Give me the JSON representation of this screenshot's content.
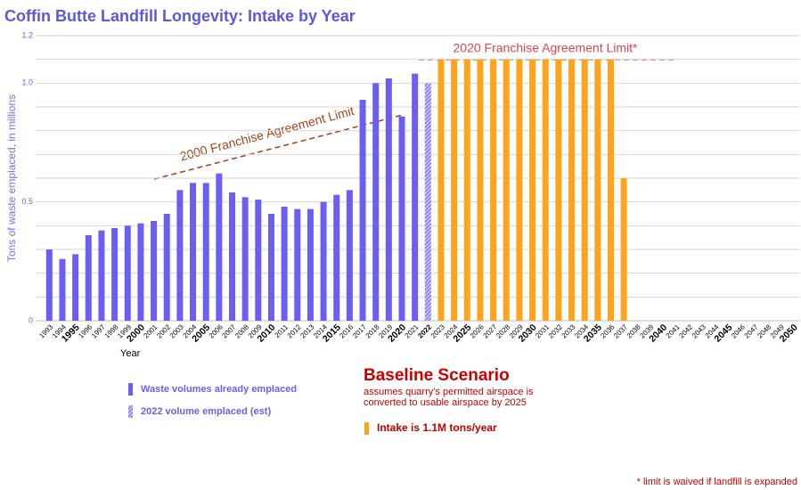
{
  "chart_data": {
    "type": "bar",
    "title": "Coffin Butte Landfill Longevity: Intake by Year",
    "y_label": "Tons of waste emplaced, in millions",
    "x_label": "Year",
    "annotations": [
      "2000 Franchise Agreement Limit",
      "2020 Franchise Agreement Limit*"
    ],
    "scenario_title": "Baseline Scenario",
    "scenario_notes": [
      "assumes quarry’s permitted airspace is",
      "converted to usable airspace by 2025"
    ],
    "footnote": "* limit is waived if landfill is expanded",
    "categories": [
      "1993",
      "1994",
      "1995",
      "1996",
      "1997",
      "1998",
      "1999",
      "2000",
      "2001",
      "2002",
      "2003",
      "2004",
      "2005",
      "2006",
      "2007",
      "2008",
      "2009",
      "2010",
      "2011",
      "2012",
      "2013",
      "2014",
      "2015",
      "2016",
      "2017",
      "2018",
      "2019",
      "2020",
      "2021",
      "2022",
      "2023",
      "2024",
      "2025",
      "2026",
      "2027",
      "2028",
      "2029",
      "2030",
      "2031",
      "2032",
      "2033",
      "2034",
      "2035",
      "2036",
      "2037",
      "2038",
      "2039",
      "2040",
      "2041",
      "2042",
      "2043",
      "2044",
      "2045",
      "2046",
      "2047",
      "2048",
      "2049",
      "2050"
    ],
    "highlight_category": 29,
    "highlight_color": "#e0202a",
    "series": [
      {
        "name": "Waste volumes already emplaced",
        "color": "#6b5ef2",
        "values": [
          0.3,
          0.26,
          0.28,
          0.36,
          0.38,
          0.39,
          0.4,
          0.41,
          0.42,
          0.45,
          0.55,
          0.58,
          0.58,
          0.62,
          0.54,
          0.52,
          0.51,
          0.45,
          0.48,
          0.47,
          0.47,
          0.5,
          0.53,
          0.55,
          0.93,
          1.0,
          1.02,
          0.86,
          1.04,
          null,
          null,
          null,
          null,
          null,
          null,
          null,
          null,
          null,
          null,
          null,
          null,
          null,
          null,
          null,
          null,
          null,
          null,
          null,
          null,
          null,
          null,
          null,
          null,
          null,
          null,
          null,
          null,
          null
        ]
      },
      {
        "name": "2022 volume emplaced (est)",
        "color": "#6b5ef2",
        "pattern": "hatch",
        "values": [
          null,
          null,
          null,
          null,
          null,
          null,
          null,
          null,
          null,
          null,
          null,
          null,
          null,
          null,
          null,
          null,
          null,
          null,
          null,
          null,
          null,
          null,
          null,
          null,
          null,
          null,
          null,
          null,
          null,
          1.0,
          null,
          null,
          null,
          null,
          null,
          null,
          null,
          null,
          null,
          null,
          null,
          null,
          null,
          null,
          null,
          null,
          null,
          null,
          null,
          null,
          null,
          null,
          null,
          null,
          null,
          null,
          null,
          null
        ]
      },
      {
        "name": "Intake is 1.1M tons/year",
        "color": "#ffa31a",
        "values": [
          null,
          null,
          null,
          null,
          null,
          null,
          null,
          null,
          null,
          null,
          null,
          null,
          null,
          null,
          null,
          null,
          null,
          null,
          null,
          null,
          null,
          null,
          null,
          null,
          null,
          null,
          null,
          null,
          null,
          null,
          1.1,
          1.1,
          1.1,
          1.1,
          1.1,
          1.1,
          1.1,
          1.1,
          1.1,
          1.1,
          1.1,
          1.1,
          1.1,
          1.1,
          0.6,
          null,
          null,
          null,
          null,
          null,
          null,
          null,
          null,
          null,
          null,
          null,
          null,
          null
        ]
      }
    ],
    "ylim": [
      0,
      1.2
    ],
    "yticks": [
      0,
      0.5,
      {
        "value": 1,
        "label": "1.0"
      },
      1.2
    ],
    "minor_yticks": [
      0.1,
      0.2,
      0.3,
      0.4,
      0.6,
      0.7,
      0.8,
      0.9,
      1.1
    ],
    "grid": true
  }
}
